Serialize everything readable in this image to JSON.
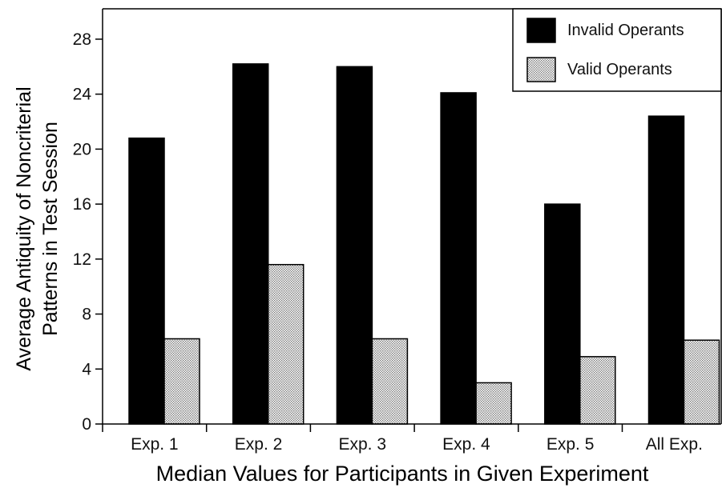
{
  "chart_data": {
    "type": "bar",
    "categories": [
      "Exp. 1",
      "Exp. 2",
      "Exp. 3",
      "Exp. 4",
      "Exp. 5",
      "All Exp."
    ],
    "series": [
      {
        "name": "Invalid Operants",
        "values": [
          20.8,
          26.2,
          26.0,
          24.1,
          16.0,
          22.4
        ],
        "color": "#000000",
        "pattern": "solid"
      },
      {
        "name": "Valid Operants",
        "values": [
          6.2,
          11.6,
          6.2,
          3.0,
          4.9,
          6.1
        ],
        "color": "#d9d9d9",
        "pattern": "dotted"
      }
    ],
    "xlabel": "Median Values for Participants in Given Experiment",
    "ylabel_line1": "Average Antiquity of Noncriterial",
    "ylabel_line2": "Patterns in Test Session",
    "yticks": [
      0,
      4,
      8,
      12,
      16,
      20,
      24,
      28
    ],
    "ylim": [
      0,
      28
    ],
    "legend_position": "top-right",
    "grid": false
  }
}
